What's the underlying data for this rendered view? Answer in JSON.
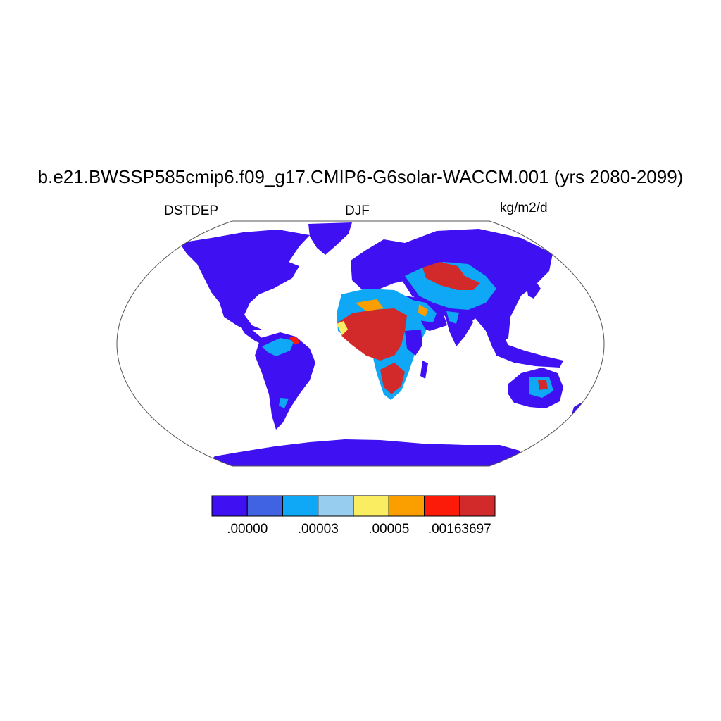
{
  "title": "b.e21.BWSSP585cmip6.f09_g17.CMIP6-G6solar-WACCM.001 (yrs 2080-2099)",
  "left_label": "DSTDEP",
  "center_label": "DJF",
  "right_label": "kg/m2/d",
  "colorbar": {
    "colors": [
      "#3e10f2",
      "#4063e3",
      "#0ea8f6",
      "#97cdef",
      "#fbed62",
      "#fb9e00",
      "#fc1b08",
      "#d22a2a"
    ],
    "tick_labels": [
      ".00000",
      ".00003",
      ".00005",
      ".00163697"
    ]
  },
  "colors": {
    "ocean": "#ffffff",
    "land_low": "#3e10f2",
    "land_med": "#4063e3",
    "land_light": "#0ea8f6",
    "land_pale": "#97cdef",
    "dust_yellow": "#fbed62",
    "dust_orange": "#fb9e00",
    "dust_red": "#fc1b08",
    "dust_dark": "#d22a2a"
  }
}
